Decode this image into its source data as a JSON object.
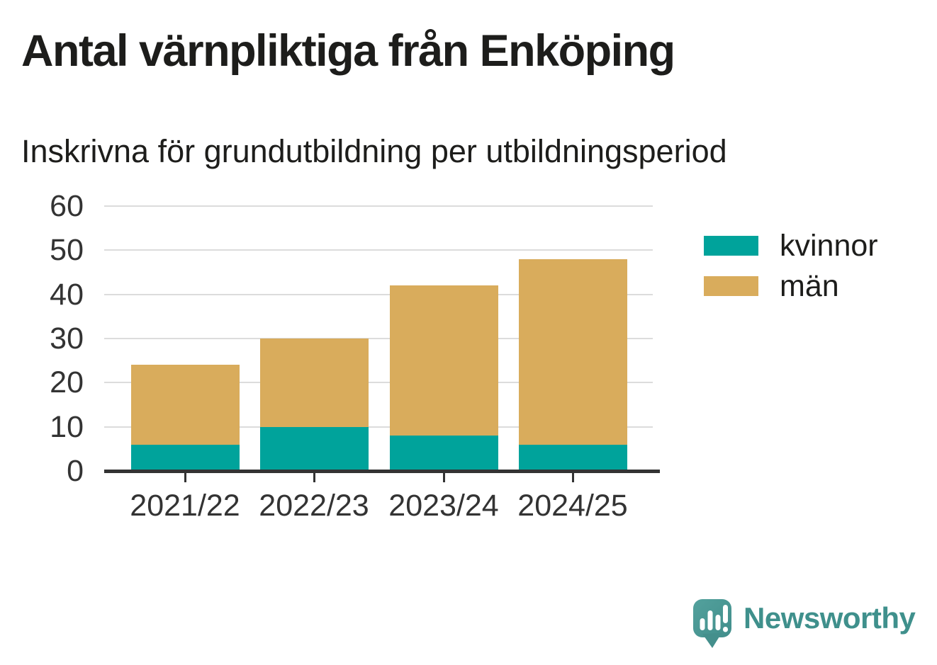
{
  "header": {
    "title": "Antal värnpliktiga från Enköping",
    "subtitle": "Inskrivna för grundutbildning per utbildningsperiod"
  },
  "chart_data": {
    "type": "bar",
    "stacked": true,
    "title": "Antal värnpliktiga från Enköping",
    "subtitle": "Inskrivna för grundutbildning per utbildningsperiod",
    "categories": [
      "2021/22",
      "2022/23",
      "2023/24",
      "2024/25"
    ],
    "series": [
      {
        "name": "kvinnor",
        "color": "#00a39b",
        "values": [
          6,
          10,
          8,
          6
        ]
      },
      {
        "name": "män",
        "color": "#d9ac5c",
        "values": [
          18,
          20,
          34,
          42
        ]
      }
    ],
    "totals": [
      24,
      30,
      42,
      48
    ],
    "xlabel": "",
    "ylabel": "",
    "ylim": [
      0,
      60
    ],
    "yticks": [
      0,
      10,
      20,
      30,
      40,
      50,
      60
    ],
    "grid": true,
    "legend_position": "right"
  },
  "colors": {
    "axis": "#333333",
    "gridline": "#dcdcdc",
    "text": "#1d1d1b",
    "brand_teal": "#3f908c",
    "logo_bubble": "#4d9e9a"
  },
  "footer": {
    "brand": "Newsworthy",
    "icon": "speech-bubble-bar-chart-icon"
  }
}
